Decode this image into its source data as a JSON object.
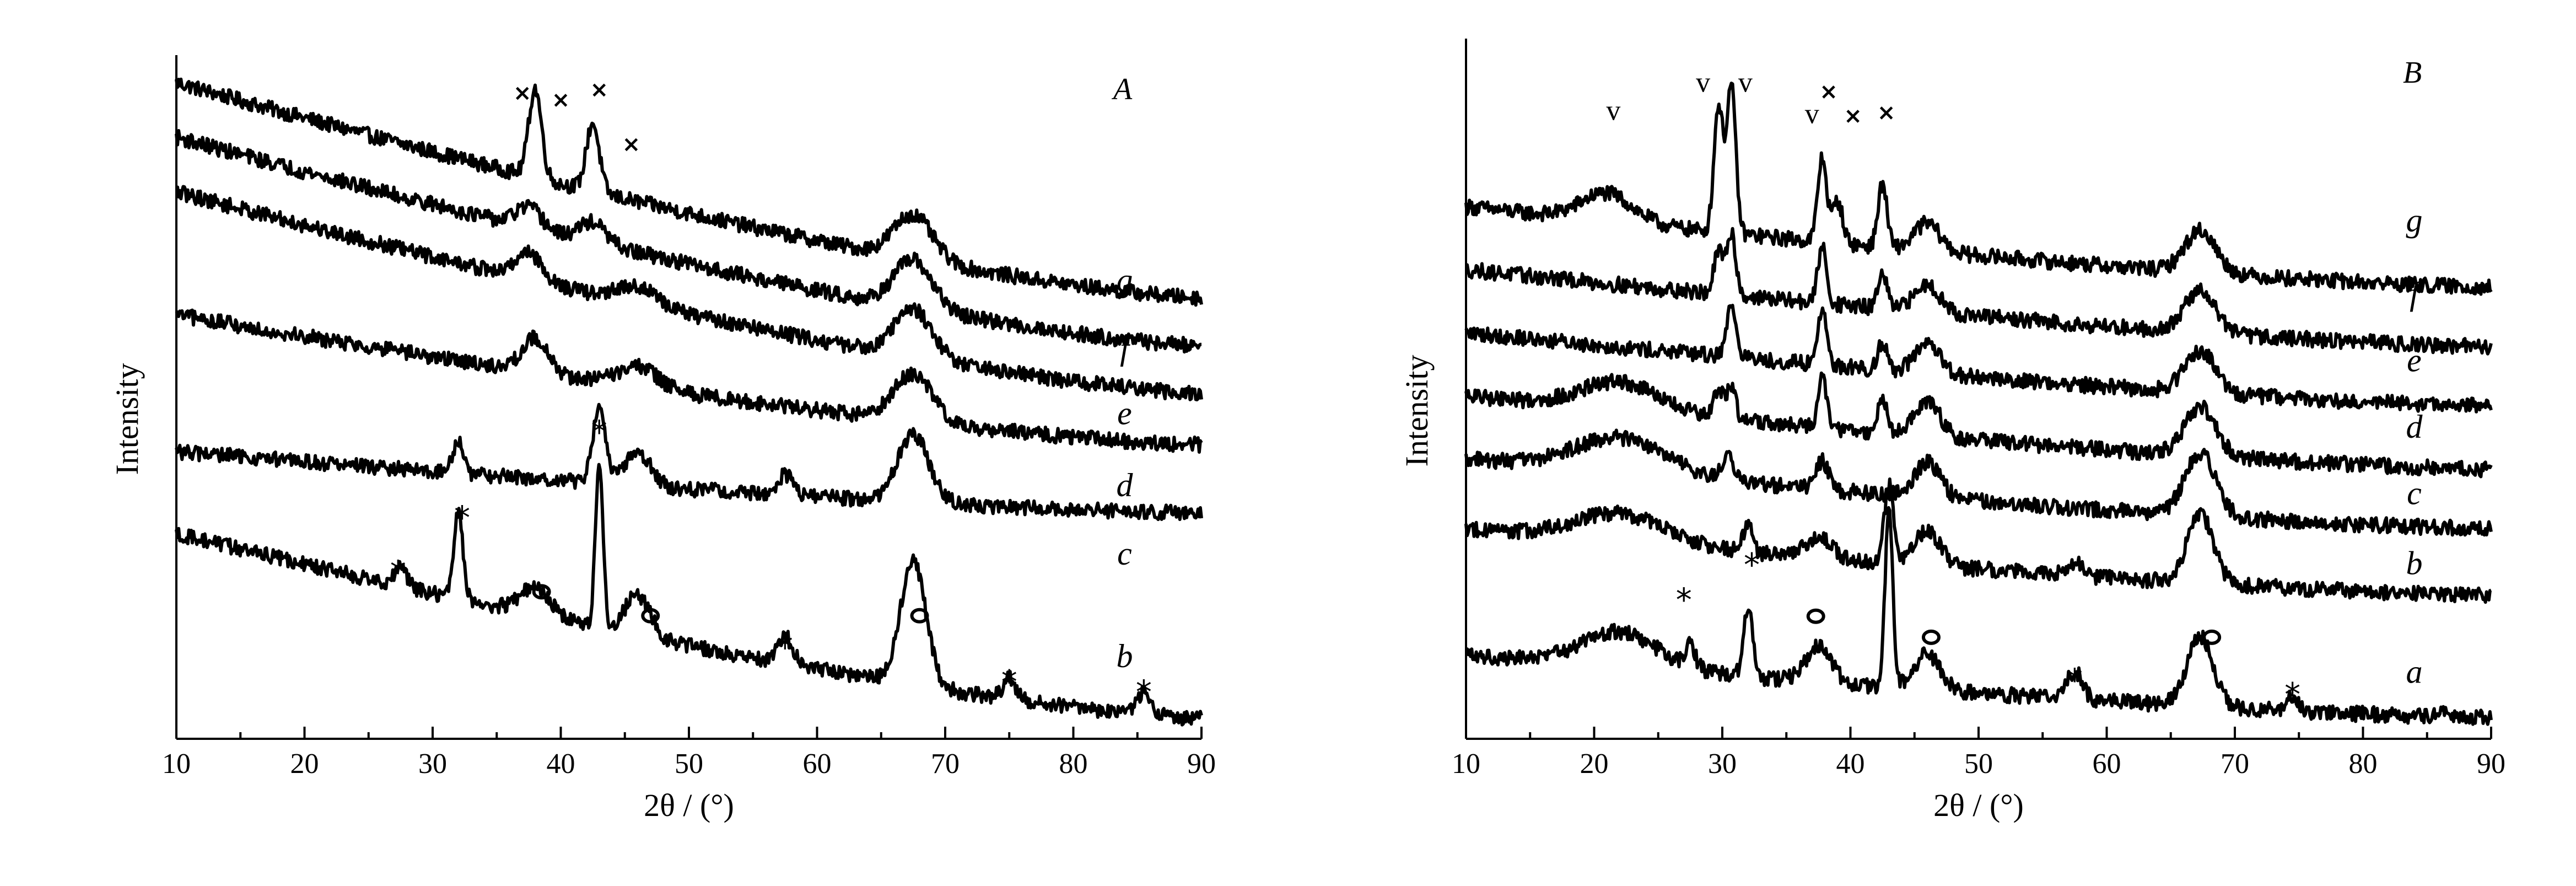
{
  "chart_data": [
    {
      "type": "line",
      "panel_label": "A",
      "xlabel": "2θ / (°)",
      "ylabel": "Intensity",
      "xlim": [
        10,
        90
      ],
      "xticks": [
        10,
        20,
        30,
        40,
        50,
        60,
        70,
        80,
        90
      ],
      "series": [
        {
          "name": "g",
          "start": 0.96,
          "end": 0.645,
          "label_x": 84,
          "label_y": 0.655,
          "peaks": [
            [
              38,
              0.13,
              0.5
            ],
            [
              42.5,
              0.1,
              0.5
            ],
            [
              67.5,
              0.065,
              1.5
            ]
          ]
        },
        {
          "name": "f",
          "start": 0.88,
          "end": 0.575,
          "label_x": 84,
          "label_y": 0.555,
          "peaks": [
            [
              37.5,
              0.03,
              1
            ],
            [
              42.5,
              0.03,
              1
            ],
            [
              67.5,
              0.07,
              1.5
            ]
          ]
        },
        {
          "name": "e",
          "start": 0.8,
          "end": 0.505,
          "label_x": 84,
          "label_y": 0.46,
          "peaks": [
            [
              37.5,
              0.04,
              1
            ],
            [
              46,
              0.025,
              1.5
            ],
            [
              67.5,
              0.07,
              1.5
            ]
          ]
        },
        {
          "name": "d",
          "start": 0.62,
          "end": 0.43,
          "label_x": 84,
          "label_y": 0.355,
          "peaks": [
            [
              38,
              0.05,
              1
            ],
            [
              46,
              0.03,
              1.5
            ],
            [
              67.5,
              0.07,
              1.5
            ]
          ]
        },
        {
          "name": "c",
          "start": 0.42,
          "end": 0.33,
          "label_x": 84,
          "label_y": 0.255,
          "peaks": [
            [
              32,
              0.05,
              0.4
            ],
            [
              43,
              0.11,
              0.5
            ],
            [
              46,
              0.05,
              1
            ],
            [
              57.5,
              0.03,
              0.6
            ],
            [
              67.5,
              0.1,
              1.2
            ]
          ]
        },
        {
          "name": "b",
          "start": 0.3,
          "end": 0.03,
          "label_x": 84,
          "label_y": 0.105,
          "peaks": [
            [
              27.5,
              0.025,
              0.5
            ],
            [
              32,
              0.13,
              0.35
            ],
            [
              38,
              0.04,
              1.2
            ],
            [
              43,
              0.24,
              0.3
            ],
            [
              46,
              0.06,
              1
            ],
            [
              57.5,
              0.04,
              0.6
            ],
            [
              67.5,
              0.18,
              1
            ],
            [
              75,
              0.03,
              0.5
            ],
            [
              85.5,
              0.03,
              0.5
            ]
          ]
        }
      ],
      "markers": [
        {
          "symbol": "×",
          "kind": "cross",
          "x": 37,
          "y": 0.945
        },
        {
          "symbol": "×",
          "kind": "cross",
          "x": 40,
          "y": 0.935
        },
        {
          "symbol": "×",
          "kind": "cross",
          "x": 43,
          "y": 0.95
        },
        {
          "symbol": "×",
          "kind": "cross",
          "x": 45.5,
          "y": 0.87
        },
        {
          "symbol": "*",
          "kind": "star",
          "x": 43,
          "y": 0.45
        },
        {
          "symbol": "*",
          "kind": "star",
          "x": 32.3,
          "y": 0.325
        },
        {
          "symbol": "*",
          "kind": "star",
          "x": 27.3,
          "y": 0.245
        },
        {
          "symbol": "*",
          "kind": "star",
          "x": 57.5,
          "y": 0.135
        },
        {
          "symbol": "*",
          "kind": "star",
          "x": 75,
          "y": 0.085
        },
        {
          "symbol": "*",
          "kind": "star",
          "x": 85.5,
          "y": 0.07
        },
        {
          "symbol": "o",
          "kind": "circle",
          "x": 38.5,
          "y": 0.215
        },
        {
          "symbol": "o",
          "kind": "circle",
          "x": 47,
          "y": 0.18
        },
        {
          "symbol": "o",
          "kind": "circle",
          "x": 68,
          "y": 0.18
        }
      ]
    },
    {
      "type": "line",
      "panel_label": "B",
      "xlabel": "2θ / (°)",
      "ylabel": "Intensity",
      "xlim": [
        10,
        90
      ],
      "xticks": [
        10,
        20,
        30,
        40,
        50,
        60,
        70,
        80,
        90
      ],
      "series": [
        {
          "name": "g",
          "start": 0.76,
          "end": 0.645,
          "label_x": 84,
          "label_y": 0.725,
          "peaks": [
            [
              21,
              0.04,
              2
            ],
            [
              29.7,
              0.18,
              0.35
            ],
            [
              30.7,
              0.21,
              0.35
            ],
            [
              37.8,
              0.12,
              0.35
            ],
            [
              39,
              0.06,
              0.4
            ],
            [
              42.5,
              0.09,
              0.35
            ],
            [
              46,
              0.04,
              1
            ],
            [
              67.3,
              0.06,
              1.2
            ]
          ]
        },
        {
          "name": "f",
          "start": 0.67,
          "end": 0.56,
          "label_x": 84,
          "label_y": 0.62,
          "peaks": [
            [
              29.7,
              0.06,
              0.35
            ],
            [
              30.7,
              0.09,
              0.35
            ],
            [
              37.8,
              0.08,
              0.35
            ],
            [
              42.5,
              0.05,
              0.35
            ],
            [
              46,
              0.04,
              1
            ],
            [
              67.3,
              0.06,
              1.2
            ]
          ]
        },
        {
          "name": "e",
          "start": 0.58,
          "end": 0.475,
          "label_x": 84,
          "label_y": 0.525,
          "peaks": [
            [
              30.7,
              0.07,
              0.4
            ],
            [
              37.8,
              0.08,
              0.35
            ],
            [
              42.5,
              0.04,
              0.35
            ],
            [
              46,
              0.04,
              1
            ],
            [
              67.3,
              0.06,
              1.2
            ]
          ]
        },
        {
          "name": "d",
          "start": 0.49,
          "end": 0.385,
          "label_x": 84,
          "label_y": 0.43,
          "peaks": [
            [
              22,
              0.04,
              3
            ],
            [
              29.7,
              0.04,
              0.35
            ],
            [
              30.7,
              0.05,
              0.35
            ],
            [
              37.8,
              0.07,
              0.35
            ],
            [
              42.5,
              0.05,
              0.35
            ],
            [
              46,
              0.05,
              1
            ],
            [
              67.3,
              0.07,
              1.2
            ]
          ]
        },
        {
          "name": "c",
          "start": 0.4,
          "end": 0.3,
          "label_x": 84,
          "label_y": 0.335,
          "peaks": [
            [
              22,
              0.05,
              3.5
            ],
            [
              30.5,
              0.03,
              0.5
            ],
            [
              37.8,
              0.04,
              0.5
            ],
            [
              46,
              0.05,
              1
            ],
            [
              67.3,
              0.09,
              1.2
            ]
          ]
        },
        {
          "name": "b",
          "start": 0.3,
          "end": 0.205,
          "label_x": 84,
          "label_y": 0.235,
          "peaks": [
            [
              22,
              0.04,
              3.5
            ],
            [
              32,
              0.04,
              0.35
            ],
            [
              37.5,
              0.03,
              1
            ],
            [
              43,
              0.11,
              0.35
            ],
            [
              46,
              0.05,
              1
            ],
            [
              57.5,
              0.02,
              0.6
            ],
            [
              67.3,
              0.1,
              1
            ]
          ]
        },
        {
          "name": "a",
          "start": 0.12,
          "end": 0.03,
          "label_x": 84,
          "label_y": 0.08,
          "peaks": [
            [
              22,
              0.05,
              3
            ],
            [
              27.5,
              0.03,
              0.4
            ],
            [
              32,
              0.1,
              0.35
            ],
            [
              37.5,
              0.05,
              1
            ],
            [
              43,
              0.25,
              0.3
            ],
            [
              46,
              0.05,
              1
            ],
            [
              57.5,
              0.04,
              0.6
            ],
            [
              67.3,
              0.1,
              1
            ],
            [
              74.5,
              0.02,
              0.4
            ],
            [
              86,
              0.01,
              0.4
            ]
          ]
        }
      ],
      "markers": [
        {
          "symbol": "v",
          "kind": "text",
          "x": 21.5,
          "y": 0.895
        },
        {
          "symbol": "v",
          "kind": "text",
          "x": 28.5,
          "y": 0.935
        },
        {
          "symbol": "v",
          "kind": "text",
          "x": 31.8,
          "y": 0.935
        },
        {
          "symbol": "v",
          "kind": "text",
          "x": 37,
          "y": 0.89
        },
        {
          "symbol": "×",
          "kind": "cross",
          "x": 38.3,
          "y": 0.925
        },
        {
          "symbol": "×",
          "kind": "cross",
          "x": 40.2,
          "y": 0.89
        },
        {
          "symbol": "×",
          "kind": "cross",
          "x": 42.8,
          "y": 0.895
        },
        {
          "symbol": "*",
          "kind": "star",
          "x": 43.2,
          "y": 0.345
        },
        {
          "symbol": "*",
          "kind": "star",
          "x": 32.3,
          "y": 0.25
        },
        {
          "symbol": "*",
          "kind": "star",
          "x": 27,
          "y": 0.2
        },
        {
          "symbol": "*",
          "kind": "star",
          "x": 57.5,
          "y": 0.085
        },
        {
          "symbol": "*",
          "kind": "star",
          "x": 74.5,
          "y": 0.065
        },
        {
          "symbol": "o",
          "kind": "circle",
          "x": 37.3,
          "y": 0.175
        },
        {
          "symbol": "o",
          "kind": "circle",
          "x": 46.3,
          "y": 0.145
        },
        {
          "symbol": "o",
          "kind": "circle",
          "x": 68.2,
          "y": 0.145
        }
      ]
    }
  ]
}
